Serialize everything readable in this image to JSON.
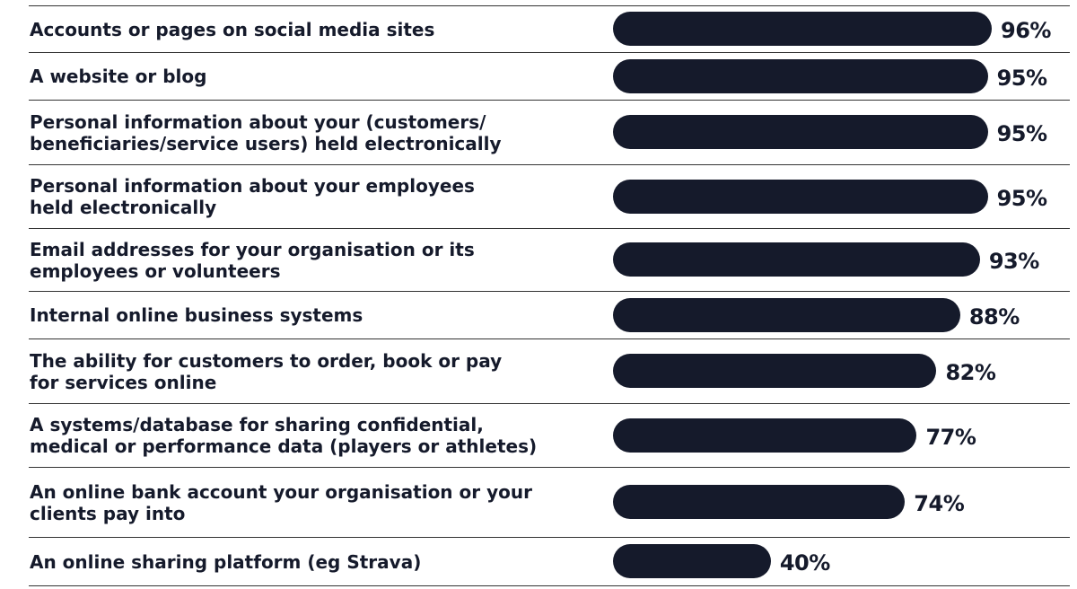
{
  "chart_data": {
    "type": "bar",
    "orientation": "horizontal",
    "categories": [
      "Accounts or pages on social media sites",
      "A website or blog",
      "Personal information about your (customers/\nbeneficiaries/service users) held electronically",
      "Personal information about your employees\nheld electronically",
      "Email addresses for your organisation or its\nemployees or volunteers",
      "Internal online business systems",
      "The ability for customers to order, book or pay\nfor services online",
      "A systems/database for sharing confidential,\nmedical or performance data (players or athletes)",
      "An online bank account your organisation or your\nclients pay into",
      "An online sharing platform (eg Strava)"
    ],
    "values": [
      96,
      95,
      95,
      95,
      93,
      88,
      82,
      77,
      74,
      40
    ],
    "value_labels": [
      "96%",
      "95%",
      "95%",
      "95%",
      "93%",
      "88%",
      "82%",
      "77%",
      "74%",
      "40%"
    ],
    "xlim": [
      0,
      100
    ],
    "grid": false,
    "legend": "none",
    "bar_color": "#151a2b"
  }
}
